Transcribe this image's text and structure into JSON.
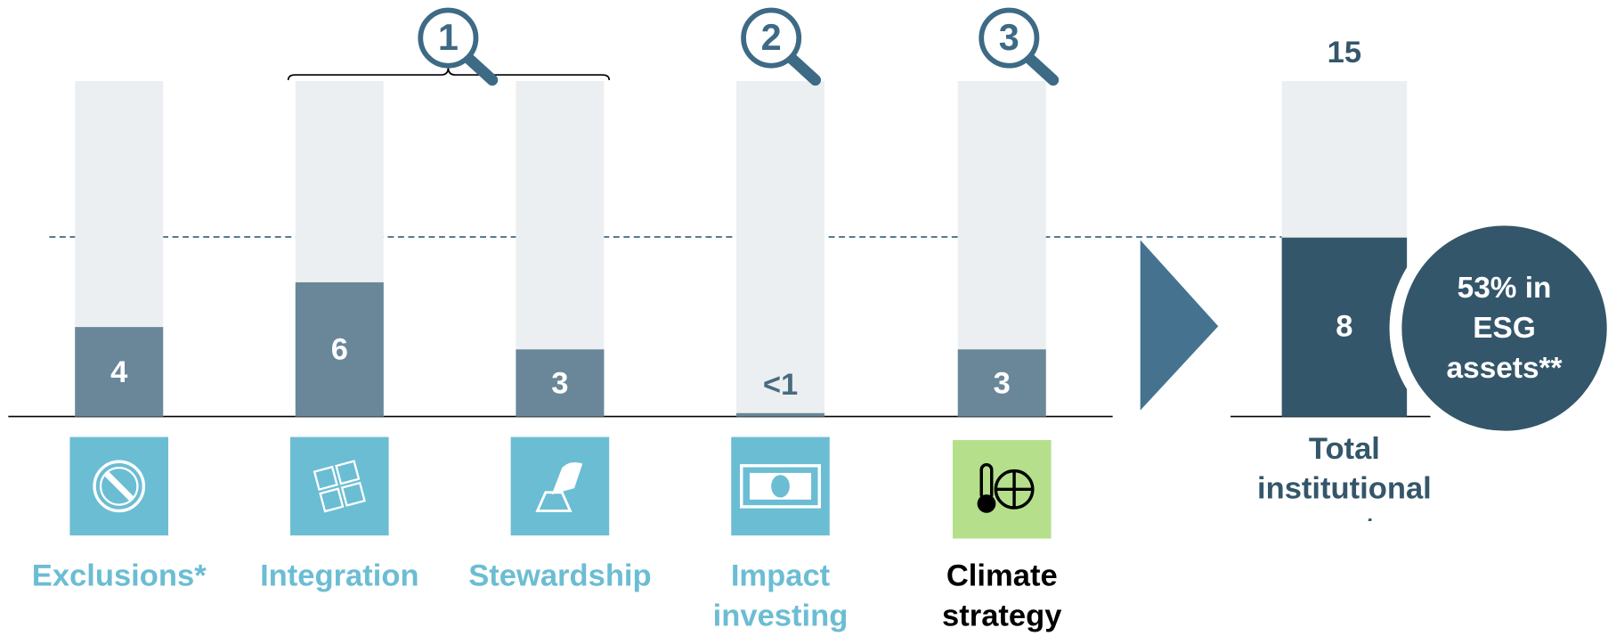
{
  "chart_data": {
    "type": "bar",
    "categories": [
      "Exclusions*",
      "Integration",
      "Stewardship",
      "Impact investing",
      "Climate strategy"
    ],
    "values": [
      4,
      6,
      3,
      0.15,
      3
    ],
    "value_labels": [
      "4",
      "6",
      "3",
      "<1",
      "3"
    ],
    "color": "#6a8799",
    "ylim": [
      0,
      15
    ],
    "total_label": "Total institutional assets",
    "total_value": 8,
    "total_max": 15,
    "total_color": "#34566a",
    "callout": "53% in ESG assets**",
    "badges": [
      "1",
      "2",
      "3"
    ]
  }
}
